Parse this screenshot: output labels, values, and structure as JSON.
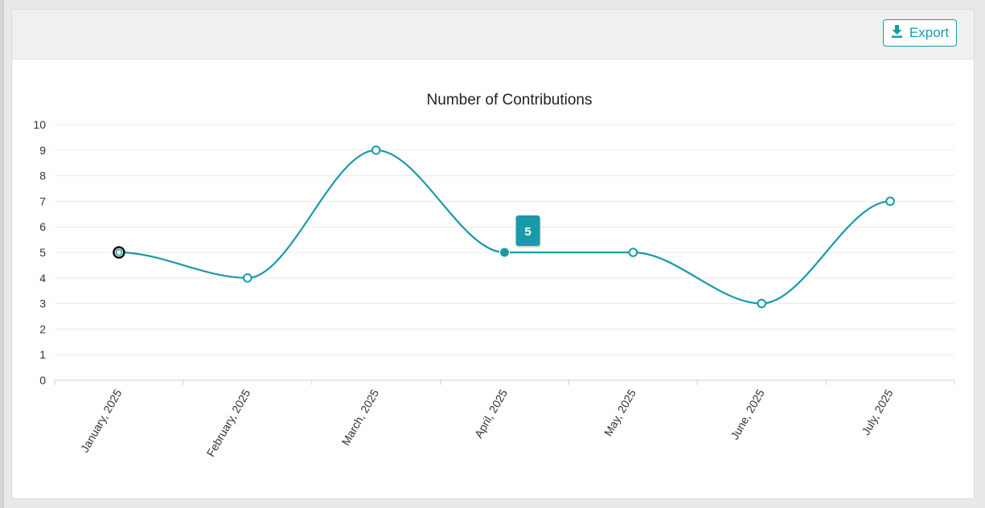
{
  "header": {
    "export_label": "Export"
  },
  "colors": {
    "accent": "#1a9aa8",
    "grid": "#e8e8e8",
    "text": "#333333"
  },
  "chart_data": {
    "type": "line",
    "title": "Number of Contributions",
    "xlabel": "",
    "ylabel": "",
    "categories": [
      "January, 2025",
      "February, 2025",
      "March, 2025",
      "April, 2025",
      "May, 2025",
      "June, 2025",
      "July, 2025"
    ],
    "values": [
      5,
      4,
      9,
      5,
      5,
      3,
      7
    ],
    "ylim": [
      0,
      10
    ],
    "yticks": [
      0,
      1,
      2,
      3,
      4,
      5,
      6,
      7,
      8,
      9,
      10
    ],
    "grid": true,
    "curve": "smooth",
    "tooltip": {
      "category": "April, 2025",
      "value": "5"
    }
  }
}
